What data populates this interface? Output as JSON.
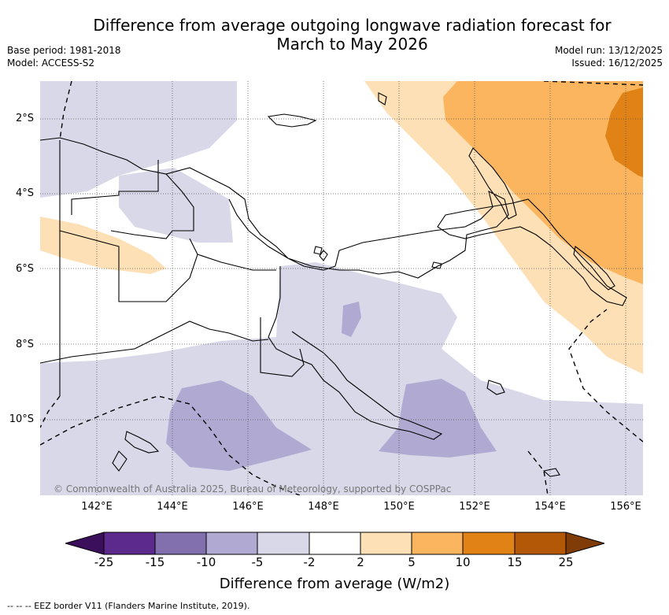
{
  "title_line1": "Difference from average outgoing longwave radiation forecast for",
  "title_line2": "March to May 2026",
  "base_period": "Base period: 1981-2018",
  "model": "Model: ACCESS-S2",
  "model_run": "Model run: 13/12/2025",
  "issued": "Issued: 16/12/2025",
  "lat_labels": [
    "2°S",
    "4°S",
    "6°S",
    "8°S",
    "10°S"
  ],
  "lon_labels": [
    "142°E",
    "144°E",
    "146°E",
    "148°E",
    "150°E",
    "152°E",
    "154°E",
    "156°E"
  ],
  "copyright": "© Commonwealth of Australia 2025, Bureau of Meteorology, supported by COSPPac",
  "colorbar": {
    "ticks": [
      "-25",
      "-15",
      "-10",
      "-5",
      "-2",
      "2",
      "5",
      "10",
      "15",
      "25"
    ],
    "colors": [
      "#3b0f5c",
      "#5c2a8c",
      "#8170ad",
      "#b0aad2",
      "#d8d8e9",
      "#ffffff",
      "#fde0b5",
      "#fbb55f",
      "#e08215",
      "#b35806",
      "#7f3b08"
    ],
    "label": "Difference from average (W/m2)"
  },
  "footer": "--  --  -- EEZ border V11 (Flanders Marine Institute, 2019)."
}
